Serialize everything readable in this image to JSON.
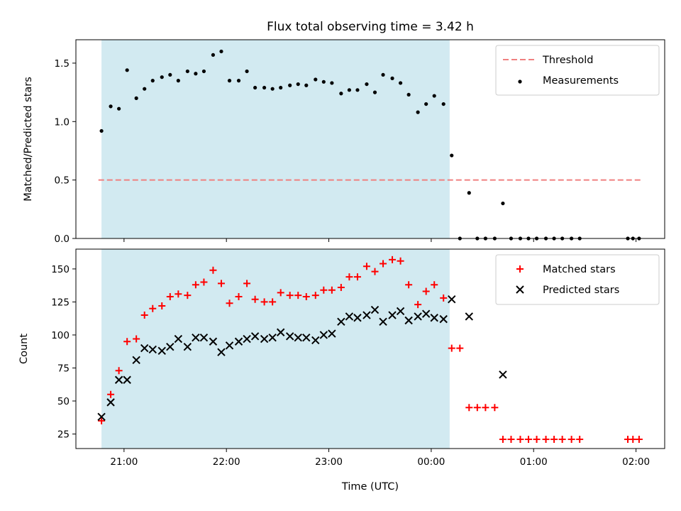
{
  "title": "Flux total observing time = 3.42 h",
  "shade_color": "#add8e6",
  "chart_data": [
    {
      "type": "scatter",
      "ylabel": "Matched/Predicted stars",
      "xlabel": "",
      "ylim": [
        0,
        1.7
      ],
      "yticks": [
        0.0,
        0.5,
        1.0,
        1.5
      ],
      "ytick_labels": [
        "0.0",
        "0.5",
        "1.0",
        "1.5"
      ],
      "xlim": [
        20.53,
        2.28
      ],
      "legend_position": "upper right",
      "threshold": {
        "name": "Threshold",
        "y": 0.5,
        "x_range": [
          20.75,
          2.05
        ],
        "color": "#f08080"
      },
      "shaded_span": [
        20.78,
        0.18
      ],
      "series": [
        {
          "name": "Measurements",
          "color": "#000000",
          "marker": "dot",
          "points": [
            [
              20.78,
              0.92
            ],
            [
              20.87,
              1.13
            ],
            [
              20.95,
              1.11
            ],
            [
              21.03,
              1.44
            ],
            [
              21.12,
              1.2
            ],
            [
              21.2,
              1.28
            ],
            [
              21.28,
              1.35
            ],
            [
              21.37,
              1.38
            ],
            [
              21.45,
              1.4
            ],
            [
              21.53,
              1.35
            ],
            [
              21.62,
              1.43
            ],
            [
              21.7,
              1.41
            ],
            [
              21.78,
              1.43
            ],
            [
              21.87,
              1.57
            ],
            [
              21.95,
              1.6
            ],
            [
              22.03,
              1.35
            ],
            [
              22.12,
              1.35
            ],
            [
              22.2,
              1.43
            ],
            [
              22.28,
              1.29
            ],
            [
              22.37,
              1.29
            ],
            [
              22.45,
              1.28
            ],
            [
              22.53,
              1.29
            ],
            [
              22.62,
              1.31
            ],
            [
              22.7,
              1.32
            ],
            [
              22.78,
              1.31
            ],
            [
              22.87,
              1.36
            ],
            [
              22.95,
              1.34
            ],
            [
              23.03,
              1.33
            ],
            [
              23.12,
              1.24
            ],
            [
              23.2,
              1.27
            ],
            [
              23.28,
              1.27
            ],
            [
              23.37,
              1.32
            ],
            [
              23.45,
              1.25
            ],
            [
              23.53,
              1.4
            ],
            [
              23.62,
              1.37
            ],
            [
              23.7,
              1.33
            ],
            [
              23.78,
              1.23
            ],
            [
              23.87,
              1.08
            ],
            [
              23.95,
              1.15
            ],
            [
              0.03,
              1.22
            ],
            [
              0.12,
              1.15
            ],
            [
              0.2,
              0.71
            ],
            [
              0.28,
              0.0
            ],
            [
              0.37,
              0.39
            ],
            [
              0.45,
              0.0
            ],
            [
              0.53,
              0.0
            ],
            [
              0.62,
              0.0
            ],
            [
              0.7,
              0.3
            ],
            [
              0.78,
              0.0
            ],
            [
              0.87,
              0.0
            ],
            [
              0.95,
              0.0
            ],
            [
              1.03,
              0.0
            ],
            [
              1.12,
              0.0
            ],
            [
              1.2,
              0.0
            ],
            [
              1.28,
              0.0
            ],
            [
              1.37,
              0.0
            ],
            [
              1.45,
              0.0
            ],
            [
              1.92,
              0.0
            ],
            [
              1.97,
              0.0
            ],
            [
              2.03,
              0.0
            ]
          ]
        }
      ]
    },
    {
      "type": "scatter",
      "ylabel": "Count",
      "xlabel": "Time (UTC)",
      "ylim": [
        14,
        165
      ],
      "yticks": [
        25,
        50,
        75,
        100,
        125,
        150
      ],
      "ytick_labels": [
        "25",
        "50",
        "75",
        "100",
        "125",
        "150"
      ],
      "xlim": [
        20.53,
        2.28
      ],
      "xticks": [
        21.0,
        22.0,
        23.0,
        0.0,
        1.0,
        2.0
      ],
      "xtick_labels": [
        "21:00",
        "22:00",
        "23:00",
        "00:00",
        "01:00",
        "02:00"
      ],
      "legend_position": "upper right",
      "shaded_span": [
        20.78,
        0.18
      ],
      "series": [
        {
          "name": "Matched stars",
          "color": "#ff0000",
          "marker": "plus",
          "points": [
            [
              20.78,
              35
            ],
            [
              20.87,
              55
            ],
            [
              20.95,
              73
            ],
            [
              21.03,
              95
            ],
            [
              21.12,
              97
            ],
            [
              21.2,
              115
            ],
            [
              21.28,
              120
            ],
            [
              21.37,
              122
            ],
            [
              21.45,
              129
            ],
            [
              21.53,
              131
            ],
            [
              21.62,
              130
            ],
            [
              21.7,
              138
            ],
            [
              21.78,
              140
            ],
            [
              21.87,
              149
            ],
            [
              21.95,
              139
            ],
            [
              22.03,
              124
            ],
            [
              22.12,
              129
            ],
            [
              22.2,
              139
            ],
            [
              22.28,
              127
            ],
            [
              22.37,
              125
            ],
            [
              22.45,
              125
            ],
            [
              22.53,
              132
            ],
            [
              22.62,
              130
            ],
            [
              22.7,
              130
            ],
            [
              22.78,
              129
            ],
            [
              22.87,
              130
            ],
            [
              22.95,
              134
            ],
            [
              23.03,
              134
            ],
            [
              23.12,
              136
            ],
            [
              23.2,
              144
            ],
            [
              23.28,
              144
            ],
            [
              23.37,
              152
            ],
            [
              23.45,
              148
            ],
            [
              23.53,
              154
            ],
            [
              23.62,
              157
            ],
            [
              23.7,
              156
            ],
            [
              23.78,
              138
            ],
            [
              23.87,
              123
            ],
            [
              23.95,
              133
            ],
            [
              0.03,
              138
            ],
            [
              0.12,
              128
            ],
            [
              0.2,
              90
            ],
            [
              0.28,
              90
            ],
            [
              0.37,
              45
            ],
            [
              0.45,
              45
            ],
            [
              0.53,
              45
            ],
            [
              0.62,
              45
            ],
            [
              0.7,
              21
            ],
            [
              0.78,
              21
            ],
            [
              0.87,
              21
            ],
            [
              0.95,
              21
            ],
            [
              1.03,
              21
            ],
            [
              1.12,
              21
            ],
            [
              1.2,
              21
            ],
            [
              1.28,
              21
            ],
            [
              1.37,
              21
            ],
            [
              1.45,
              21
            ],
            [
              1.92,
              21
            ],
            [
              1.97,
              21
            ],
            [
              2.03,
              21
            ]
          ]
        },
        {
          "name": "Predicted stars",
          "color": "#000000",
          "marker": "x",
          "points": [
            [
              20.78,
              38
            ],
            [
              20.87,
              49
            ],
            [
              20.95,
              66
            ],
            [
              21.03,
              66
            ],
            [
              21.12,
              81
            ],
            [
              21.2,
              90
            ],
            [
              21.28,
              89
            ],
            [
              21.37,
              88
            ],
            [
              21.45,
              91
            ],
            [
              21.53,
              97
            ],
            [
              21.62,
              91
            ],
            [
              21.7,
              98
            ],
            [
              21.78,
              98
            ],
            [
              21.87,
              95
            ],
            [
              21.95,
              87
            ],
            [
              22.03,
              92
            ],
            [
              22.12,
              95
            ],
            [
              22.2,
              97
            ],
            [
              22.28,
              99
            ],
            [
              22.37,
              97
            ],
            [
              22.45,
              98
            ],
            [
              22.53,
              102
            ],
            [
              22.62,
              99
            ],
            [
              22.7,
              98
            ],
            [
              22.78,
              98
            ],
            [
              22.87,
              96
            ],
            [
              22.95,
              100
            ],
            [
              23.03,
              101
            ],
            [
              23.12,
              110
            ],
            [
              23.2,
              114
            ],
            [
              23.28,
              113
            ],
            [
              23.37,
              115
            ],
            [
              23.45,
              119
            ],
            [
              23.53,
              110
            ],
            [
              23.62,
              115
            ],
            [
              23.7,
              118
            ],
            [
              23.78,
              111
            ],
            [
              23.87,
              114
            ],
            [
              23.95,
              116
            ],
            [
              0.03,
              113
            ],
            [
              0.12,
              112
            ],
            [
              0.2,
              127
            ],
            [
              0.37,
              114
            ],
            [
              0.7,
              70
            ]
          ]
        }
      ]
    }
  ]
}
